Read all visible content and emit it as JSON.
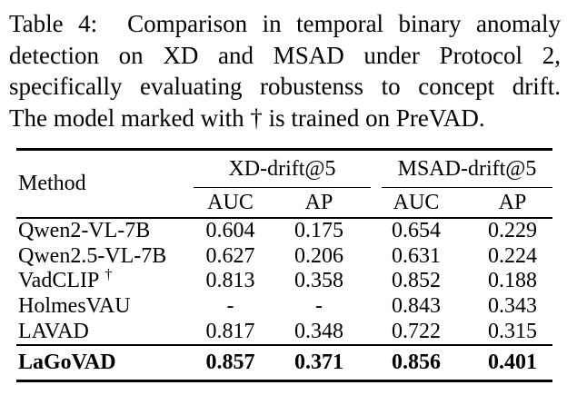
{
  "caption": {
    "lines": [
      "Table 4:  Comparison in temporal binary anomaly",
      "detection on XD and MSAD under Protocol 2,",
      "specifically evaluating robustenss to concept drift.",
      "The model marked with † is trained on PreVAD."
    ]
  },
  "table": {
    "method_header": "Method",
    "groups": [
      {
        "label": "XD-drift@5",
        "sub": [
          "AUC",
          "AP"
        ]
      },
      {
        "label": "MSAD-drift@5",
        "sub": [
          "AUC",
          "AP"
        ]
      }
    ],
    "rows": [
      {
        "method": "Qwen2-VL-7B",
        "values": [
          "0.604",
          "0.175",
          "0.654",
          "0.229"
        ]
      },
      {
        "method": "Qwen2.5-VL-7B",
        "values": [
          "0.627",
          "0.206",
          "0.631",
          "0.224"
        ]
      },
      {
        "method": "VadCLIP",
        "dagger": "†",
        "values": [
          "0.813",
          "0.358",
          "0.852",
          "0.188"
        ]
      },
      {
        "method": "HolmesVAU",
        "values": [
          "-",
          "-",
          "0.843",
          "0.343"
        ]
      },
      {
        "method": "LAVAD",
        "values": [
          "0.817",
          "0.348",
          "0.722",
          "0.315"
        ]
      },
      {
        "method": "LaGoVAD",
        "values": [
          "0.857",
          "0.371",
          "0.856",
          "0.401"
        ]
      }
    ]
  },
  "colors": {
    "text": "#000000",
    "background": "#ffffff"
  }
}
